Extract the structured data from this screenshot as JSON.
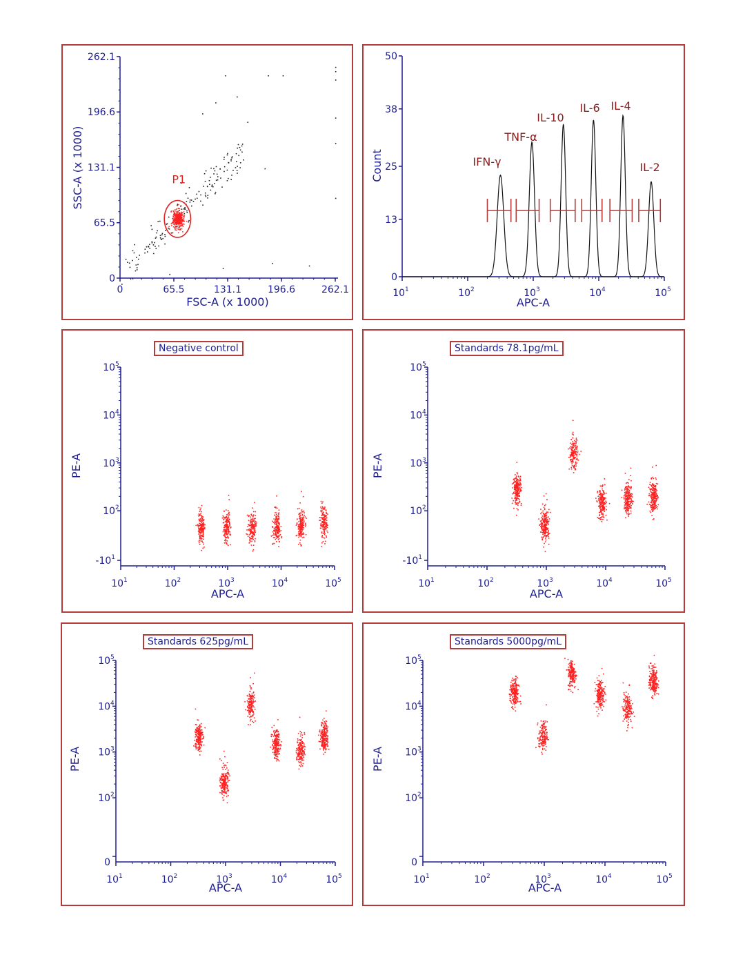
{
  "colors": {
    "frame": "#b23b3b",
    "axis": "#1d1d8f",
    "dots": "#ff2020",
    "peak_labels": "#8b1a1a",
    "black_dots": "#222222"
  },
  "chart_data": [
    {
      "id": "p1",
      "type": "scatter",
      "xlabel": "FSC-A (x 1000)",
      "ylabel": "SSC-A (x 1000)",
      "xlim": [
        0,
        262.1
      ],
      "ylim": [
        0,
        262.1
      ],
      "ticks": [
        "0",
        "65.5",
        "131.1",
        "196.6",
        "262.1"
      ],
      "gate": {
        "name": "P1",
        "center": [
          70,
          70
        ],
        "rx": 14,
        "ry": 19
      },
      "clusters": [
        {
          "x": 70,
          "y": 70,
          "sx": 3.2,
          "sy": 5.5,
          "n": 380,
          "color": "red"
        }
      ],
      "trail": {
        "from": [
          8,
          15
        ],
        "to": [
          150,
          150
        ],
        "n": 170,
        "spread": 9,
        "color": "black"
      },
      "extra_points": [
        [
          100,
          195
        ],
        [
          116,
          208
        ],
        [
          155,
          185
        ],
        [
          180,
          240
        ],
        [
          198,
          240
        ],
        [
          128,
          240
        ],
        [
          142,
          215
        ],
        [
          176,
          130
        ],
        [
          230,
          15
        ],
        [
          125,
          12
        ],
        [
          185,
          18
        ],
        [
          262,
          250
        ],
        [
          262,
          245
        ],
        [
          262,
          235
        ],
        [
          262,
          190
        ],
        [
          262,
          160
        ],
        [
          262,
          95
        ],
        [
          60,
          5
        ],
        [
          40,
          40
        ]
      ]
    },
    {
      "id": "p2",
      "type": "histogram",
      "xlabel": "APC-A",
      "ylabel": "Count",
      "xlim_log10": [
        1,
        5
      ],
      "ylim": [
        0,
        50
      ],
      "yticks": [
        0,
        13,
        25,
        38,
        50
      ],
      "xticks_exp": [
        1,
        2,
        3,
        4,
        5
      ],
      "peaks": [
        {
          "label": "IFN-γ",
          "center": 2.5,
          "height": 23,
          "sigma": 0.05
        },
        {
          "label": "TNF-α",
          "center": 2.98,
          "height": 30.5,
          "sigma": 0.04
        },
        {
          "label": "IL-10",
          "center": 3.46,
          "height": 34.5,
          "sigma": 0.035
        },
        {
          "label": "IL-6",
          "center": 3.92,
          "height": 35.5,
          "sigma": 0.035
        },
        {
          "label": "IL-4",
          "center": 4.37,
          "height": 36.5,
          "sigma": 0.035
        },
        {
          "label": "IL-2",
          "center": 4.8,
          "height": 21.5,
          "sigma": 0.04
        }
      ],
      "gates": [
        [
          2.3,
          2.66
        ],
        [
          2.74,
          3.09
        ],
        [
          3.26,
          3.64
        ],
        [
          3.74,
          4.05
        ],
        [
          4.17,
          4.51
        ],
        [
          4.61,
          4.94
        ]
      ],
      "gate_y": 15
    },
    {
      "id": "p3",
      "type": "scatter",
      "title": "Negative control",
      "xlabel": "APC-A",
      "ylabel": "PE-A",
      "yticks": [
        "-10¹",
        "10²",
        "10³",
        "10⁴",
        "10⁵"
      ],
      "clusters": [
        {
          "x": 2.5,
          "y": 1.65,
          "n": 160
        },
        {
          "x": 2.97,
          "y": 1.65,
          "n": 160
        },
        {
          "x": 3.45,
          "y": 1.65,
          "n": 160
        },
        {
          "x": 3.91,
          "y": 1.65,
          "n": 160
        },
        {
          "x": 4.36,
          "y": 1.7,
          "n": 170
        },
        {
          "x": 4.79,
          "y": 1.75,
          "n": 160
        }
      ]
    },
    {
      "id": "p4",
      "type": "scatter",
      "title": "Standards 78.1pg/mL",
      "xlabel": "APC-A",
      "ylabel": "PE-A",
      "yticks": [
        "-10¹",
        "10²",
        "10³",
        "10⁴",
        "10⁵"
      ],
      "clusters": [
        {
          "x": 2.5,
          "y": 2.45,
          "n": 200
        },
        {
          "x": 2.97,
          "y": 1.7,
          "n": 220
        },
        {
          "x": 3.45,
          "y": 3.2,
          "n": 160
        },
        {
          "x": 3.93,
          "y": 2.15,
          "n": 200
        },
        {
          "x": 4.37,
          "y": 2.25,
          "n": 200
        },
        {
          "x": 4.8,
          "y": 2.3,
          "n": 220
        }
      ]
    },
    {
      "id": "p5",
      "type": "scatter",
      "title": "Standards 625pg/mL",
      "xlabel": "APC-A",
      "ylabel": "PE-A",
      "yticks": [
        "0",
        "10²",
        "10³",
        "10⁴",
        "10⁵"
      ],
      "clusters": [
        {
          "x": 2.5,
          "y": 3.35,
          "n": 200
        },
        {
          "x": 2.97,
          "y": 2.35,
          "n": 200
        },
        {
          "x": 3.45,
          "y": 4.05,
          "n": 160
        },
        {
          "x": 3.91,
          "y": 3.18,
          "n": 200
        },
        {
          "x": 4.36,
          "y": 3.05,
          "n": 160
        },
        {
          "x": 4.79,
          "y": 3.35,
          "n": 220
        }
      ]
    },
    {
      "id": "p6",
      "type": "scatter",
      "title": "Standards 5000pg/mL",
      "xlabel": "APC-A",
      "ylabel": "PE-A",
      "yticks": [
        "0",
        "10²",
        "10³",
        "10⁴",
        "10⁵"
      ],
      "clusters": [
        {
          "x": 2.5,
          "y": 4.28,
          "n": 200
        },
        {
          "x": 2.97,
          "y": 3.35,
          "n": 150
        },
        {
          "x": 3.45,
          "y": 4.72,
          "n": 170
        },
        {
          "x": 3.91,
          "y": 4.28,
          "n": 190
        },
        {
          "x": 4.36,
          "y": 3.95,
          "n": 160
        },
        {
          "x": 4.79,
          "y": 4.55,
          "n": 220
        }
      ]
    }
  ]
}
